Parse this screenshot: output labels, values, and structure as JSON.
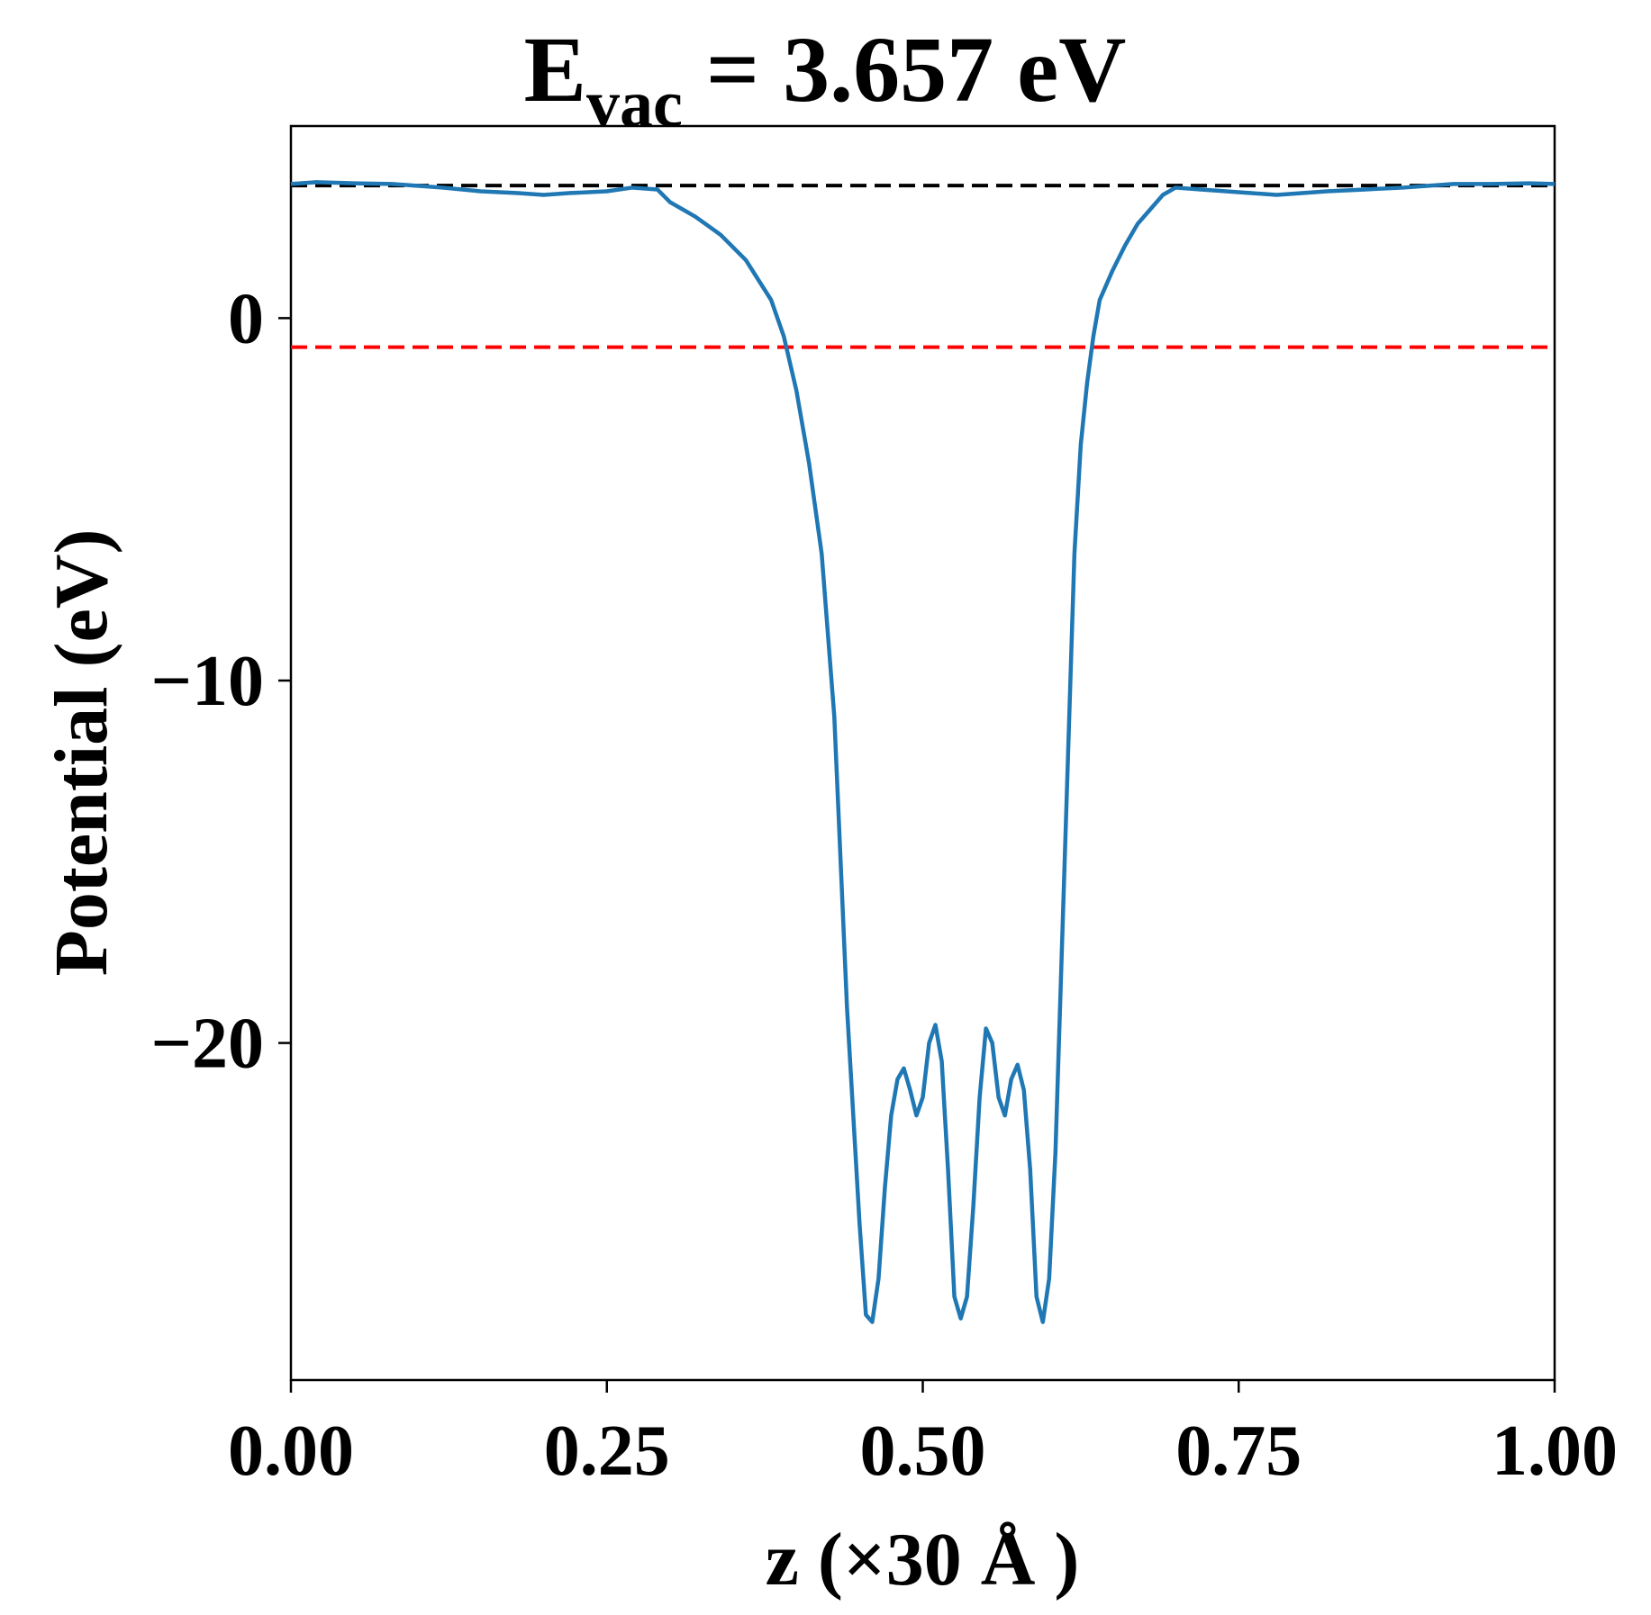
{
  "chart_data": {
    "type": "line",
    "title": {
      "main": "E",
      "subscript": "vac",
      "rest": " = 3.657 eV"
    },
    "xlabel": "z (×30 Å )",
    "ylabel": "Potential (eV)",
    "xlim": [
      0,
      1
    ],
    "ylim": [
      -29.3,
      5.3
    ],
    "x_ticks": [
      0.0,
      0.25,
      0.5,
      0.75,
      1.0
    ],
    "x_tick_labels": [
      "0.00",
      "0.25",
      "0.50",
      "0.75",
      "1.00"
    ],
    "y_ticks": [
      0,
      -10,
      -20
    ],
    "y_tick_labels": [
      "0",
      "−10",
      "−20"
    ],
    "grid": false,
    "legend": "none",
    "hlines": [
      {
        "y": 3.657,
        "color": "#000000",
        "style": "dashed"
      },
      {
        "y": -0.8,
        "color": "#ff0000",
        "style": "dashed"
      }
    ],
    "series": [
      {
        "color": "#1f77b4",
        "x": [
          0.0,
          0.02,
          0.05,
          0.08,
          0.1,
          0.12,
          0.15,
          0.18,
          0.2,
          0.22,
          0.25,
          0.27,
          0.29,
          0.3,
          0.32,
          0.34,
          0.36,
          0.38,
          0.39,
          0.4,
          0.41,
          0.42,
          0.43,
          0.44,
          0.45,
          0.455,
          0.46,
          0.465,
          0.47,
          0.475,
          0.48,
          0.485,
          0.49,
          0.495,
          0.5,
          0.505,
          0.51,
          0.515,
          0.52,
          0.525,
          0.53,
          0.535,
          0.54,
          0.545,
          0.55,
          0.555,
          0.56,
          0.565,
          0.57,
          0.575,
          0.58,
          0.585,
          0.59,
          0.595,
          0.6,
          0.605,
          0.61,
          0.615,
          0.62,
          0.625,
          0.63,
          0.635,
          0.64,
          0.65,
          0.66,
          0.67,
          0.68,
          0.69,
          0.7,
          0.72,
          0.74,
          0.76,
          0.78,
          0.8,
          0.82,
          0.85,
          0.88,
          0.9,
          0.92,
          0.95,
          0.98,
          1.0
        ],
        "y": [
          3.7,
          3.75,
          3.72,
          3.7,
          3.65,
          3.6,
          3.5,
          3.45,
          3.4,
          3.45,
          3.5,
          3.6,
          3.55,
          3.2,
          2.8,
          2.3,
          1.6,
          0.5,
          -0.5,
          -2.0,
          -4.0,
          -6.5,
          -11.0,
          -19.0,
          -25.0,
          -27.5,
          -27.7,
          -26.5,
          -24.0,
          -22.0,
          -21.0,
          -20.7,
          -21.3,
          -22.0,
          -21.5,
          -20.0,
          -19.5,
          -20.5,
          -23.5,
          -27.0,
          -27.6,
          -27.0,
          -24.5,
          -21.5,
          -19.6,
          -20.0,
          -21.5,
          -22.0,
          -21.0,
          -20.6,
          -21.3,
          -23.5,
          -27.0,
          -27.7,
          -26.5,
          -23.0,
          -17.5,
          -12.0,
          -6.5,
          -3.5,
          -1.8,
          -0.5,
          0.5,
          1.3,
          2.0,
          2.6,
          3.0,
          3.4,
          3.6,
          3.55,
          3.5,
          3.45,
          3.4,
          3.45,
          3.5,
          3.55,
          3.6,
          3.65,
          3.7,
          3.7,
          3.72,
          3.7
        ]
      }
    ]
  }
}
